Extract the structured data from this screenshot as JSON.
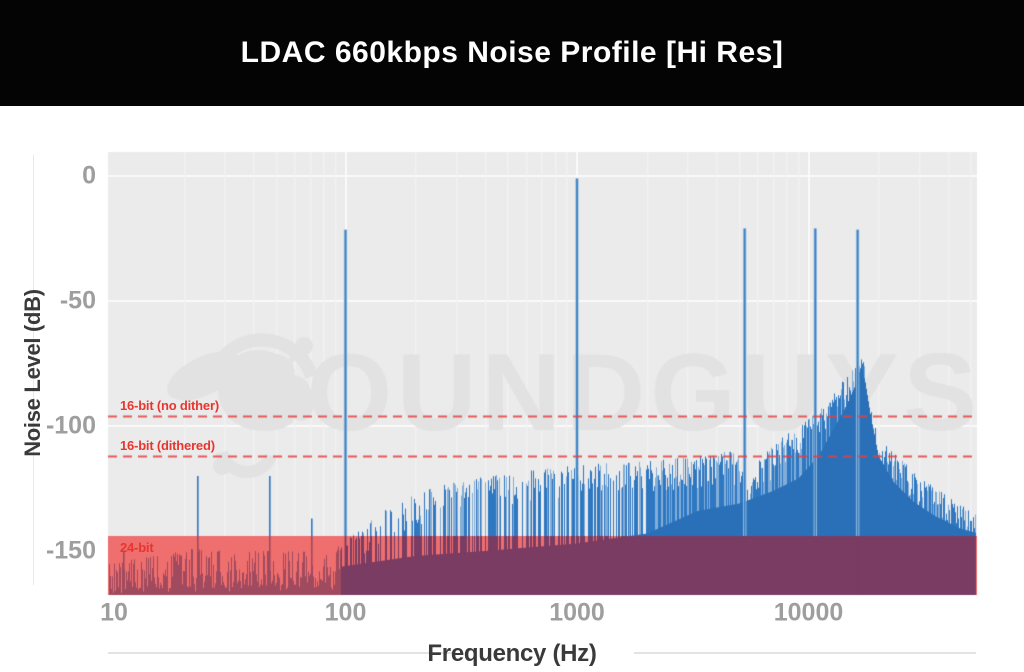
{
  "header": {
    "title": "LDAC 660kbps Noise Profile [Hi Res]"
  },
  "watermark": {
    "text": "SOUNDGUYS"
  },
  "chart_data": {
    "type": "line",
    "subtype": "frequency-spectrum",
    "title": "LDAC 660kbps Noise Profile [Hi Res]",
    "xlabel": "Frequency (Hz)",
    "ylabel": "Noise Level (dB)",
    "x_scale": "log",
    "x_ticks": [
      "10",
      "100",
      "1000",
      "10000"
    ],
    "x_tick_values": [
      10,
      100,
      1000,
      10000
    ],
    "x_range_hz": [
      9.4,
      53900
    ],
    "y_ticks": [
      "0",
      "-50",
      "-100",
      "-150"
    ],
    "y_tick_values": [
      0,
      -50,
      -100,
      -150
    ],
    "ylim_db": [
      -168,
      10
    ],
    "grid": true,
    "legend_position": "none",
    "reference_lines": [
      {
        "label": "16-bit (no dither)",
        "db": -96,
        "style": "dashed"
      },
      {
        "label": "16-bit (dithered)",
        "db": -112,
        "style": "dashed"
      },
      {
        "label": "24-bit",
        "db": -144,
        "style": "shaded-region-below"
      }
    ],
    "test_tones": [
      {
        "freq_hz": 100,
        "peak_db": -21.5
      },
      {
        "freq_hz": 1000,
        "peak_db": -1
      },
      {
        "freq_hz": 5300,
        "peak_db": -21
      },
      {
        "freq_hz": 10700,
        "peak_db": -21
      },
      {
        "freq_hz": 16300,
        "peak_db": -21.5
      }
    ],
    "low_freq_spikes": [
      [
        11,
        -150
      ],
      [
        23,
        -120
      ],
      [
        47,
        -120
      ],
      [
        72,
        -137
      ]
    ],
    "noise_tip_envelope_db": [
      [
        9.4,
        -155
      ],
      [
        15,
        -152
      ],
      [
        20,
        -149
      ],
      [
        30,
        -150
      ],
      [
        60,
        -150
      ],
      [
        85,
        -151
      ],
      [
        120,
        -140
      ],
      [
        160,
        -131
      ],
      [
        250,
        -124
      ],
      [
        400,
        -120
      ],
      [
        700,
        -117
      ],
      [
        1200,
        -115
      ],
      [
        2000,
        -114
      ],
      [
        3300,
        -112
      ],
      [
        4500,
        -110
      ],
      [
        5100,
        -112
      ],
      [
        5500,
        -128
      ],
      [
        6000,
        -114
      ],
      [
        7000,
        -108
      ],
      [
        8000,
        -103
      ],
      [
        9000,
        -100
      ],
      [
        10000,
        -97
      ],
      [
        11000,
        -94
      ],
      [
        12000,
        -91
      ],
      [
        13000,
        -86
      ],
      [
        14000,
        -82
      ],
      [
        15000,
        -78
      ],
      [
        16000,
        -76
      ],
      [
        16800,
        -71
      ],
      [
        17500,
        -77
      ],
      [
        18000,
        -88
      ],
      [
        19000,
        -98
      ],
      [
        20000,
        -104
      ],
      [
        22000,
        -108
      ],
      [
        25000,
        -113
      ],
      [
        28000,
        -118
      ],
      [
        33000,
        -123
      ],
      [
        40000,
        -128
      ],
      [
        48000,
        -133
      ],
      [
        53900,
        -136
      ]
    ],
    "noise_dense_top_db": [
      [
        9.4,
        -162
      ],
      [
        50,
        -160
      ],
      [
        100,
        -156
      ],
      [
        200,
        -152
      ],
      [
        400,
        -150
      ],
      [
        1000,
        -147
      ],
      [
        2000,
        -143
      ],
      [
        3300,
        -134
      ],
      [
        5000,
        -131
      ],
      [
        7000,
        -126
      ],
      [
        9000,
        -121
      ],
      [
        11000,
        -112
      ],
      [
        13000,
        -100
      ],
      [
        14500,
        -92
      ],
      [
        16000,
        -83
      ],
      [
        16800,
        -76
      ],
      [
        17500,
        -82
      ],
      [
        18500,
        -96
      ],
      [
        20000,
        -112
      ],
      [
        23000,
        -122
      ],
      [
        28000,
        -130
      ],
      [
        35000,
        -136
      ],
      [
        45000,
        -141
      ],
      [
        53900,
        -143
      ]
    ],
    "noise_floor_bottom_db": -168
  },
  "colors": {
    "header_bg": "#040404",
    "header_text": "#ffffff",
    "plot_bg": "#ebebeb",
    "grid_minor": "#f2f2f2",
    "grid_major": "#fafafa",
    "spectrum_blue": "#2e78c2",
    "spectrum_blue_dense": "#2a70b8",
    "spectrum_blue_light": "#82add8",
    "tone_core": "#3b80c4",
    "tone_halo": "#a5c6e4",
    "red_region": "#ef6e6e",
    "overlap_purple": "#7a3c62",
    "overlap_maroon": "#a04a5f",
    "ref_line_red": "#e5403f",
    "ref_label_red": "#e7362f",
    "tick_text": "#9e9e9e",
    "axis_title_text": "#3a3a3a",
    "watermark_gray": "#e2e2e2"
  }
}
